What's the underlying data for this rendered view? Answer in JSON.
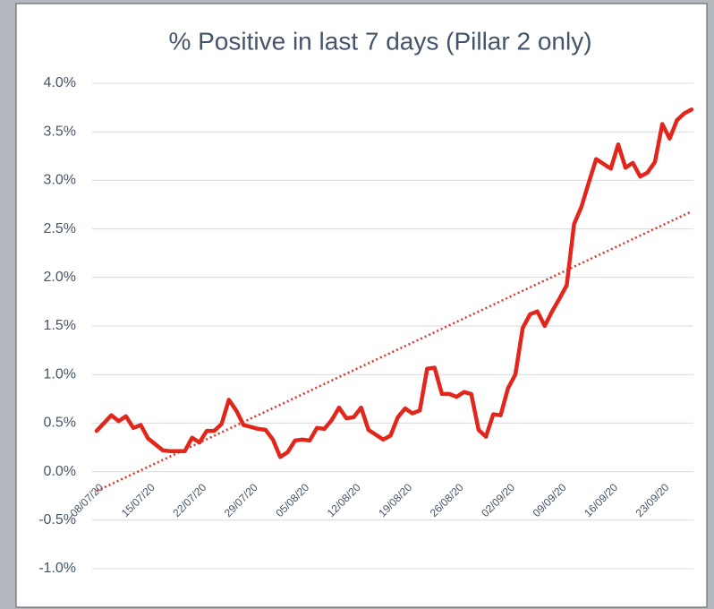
{
  "chart_data": {
    "type": "line",
    "title": "% Positive in last 7 days (Pillar 2 only)",
    "categories": [
      "08/07/20",
      null,
      null,
      null,
      null,
      null,
      null,
      "15/07/20",
      null,
      null,
      null,
      null,
      null,
      null,
      "22/07/20",
      null,
      null,
      null,
      null,
      null,
      null,
      "29/07/20",
      null,
      null,
      null,
      null,
      null,
      null,
      "05/08/20",
      null,
      null,
      null,
      null,
      null,
      null,
      "12/08/20",
      null,
      null,
      null,
      null,
      null,
      null,
      "19/08/20",
      null,
      null,
      null,
      null,
      null,
      null,
      "26/08/20",
      null,
      null,
      null,
      null,
      null,
      null,
      "02/09/20",
      null,
      null,
      null,
      null,
      null,
      null,
      "09/09/20",
      null,
      null,
      null,
      null,
      null,
      null,
      "16/09/20",
      null,
      null,
      null,
      null,
      null,
      null,
      "23/09/20",
      null,
      null,
      null,
      null
    ],
    "series": [
      {
        "color": "#e3261c",
        "values": [
          0.42,
          0.5,
          0.58,
          0.52,
          0.57,
          0.45,
          0.48,
          0.34,
          0.28,
          0.22,
          0.21,
          0.21,
          0.21,
          0.35,
          0.3,
          0.42,
          0.42,
          0.49,
          0.74,
          0.63,
          0.48,
          0.46,
          0.44,
          0.43,
          0.33,
          0.15,
          0.2,
          0.32,
          0.33,
          0.32,
          0.45,
          0.44,
          0.53,
          0.66,
          0.55,
          0.56,
          0.66,
          0.43,
          0.38,
          0.33,
          0.37,
          0.56,
          0.65,
          0.6,
          0.63,
          1.06,
          1.07,
          0.8,
          0.8,
          0.77,
          0.82,
          0.8,
          0.43,
          0.36,
          0.59,
          0.58,
          0.86,
          1.0,
          1.48,
          1.62,
          1.65,
          1.5,
          1.65,
          1.78,
          1.92,
          2.55,
          2.73,
          2.98,
          3.22,
          3.17,
          3.12,
          3.37,
          3.13,
          3.18,
          3.04,
          3.08,
          3.19,
          3.58,
          3.43,
          3.62,
          3.69,
          3.73
        ]
      }
    ],
    "trendline": {
      "color": "#d9342b",
      "start": -0.2,
      "end": 2.68
    },
    "ylim": [
      -1.0,
      4.0
    ],
    "yticks": [
      {
        "value": -1.0,
        "label": "-1.0%"
      },
      {
        "value": -0.5,
        "label": "-0.5%"
      },
      {
        "value": 0,
        "label": "0.0%"
      },
      {
        "value": 0.5,
        "label": "0.5%"
      },
      {
        "value": 1.0,
        "label": "1.0%"
      },
      {
        "value": 1.5,
        "label": "1.5%"
      },
      {
        "value": 2.0,
        "label": "2.0%"
      },
      {
        "value": 2.5,
        "label": "2.5%"
      },
      {
        "value": 3.0,
        "label": "3.0%"
      },
      {
        "value": 3.5,
        "label": "3.5%"
      },
      {
        "value": 4.0,
        "label": "4.0%"
      }
    ],
    "grid": true
  }
}
